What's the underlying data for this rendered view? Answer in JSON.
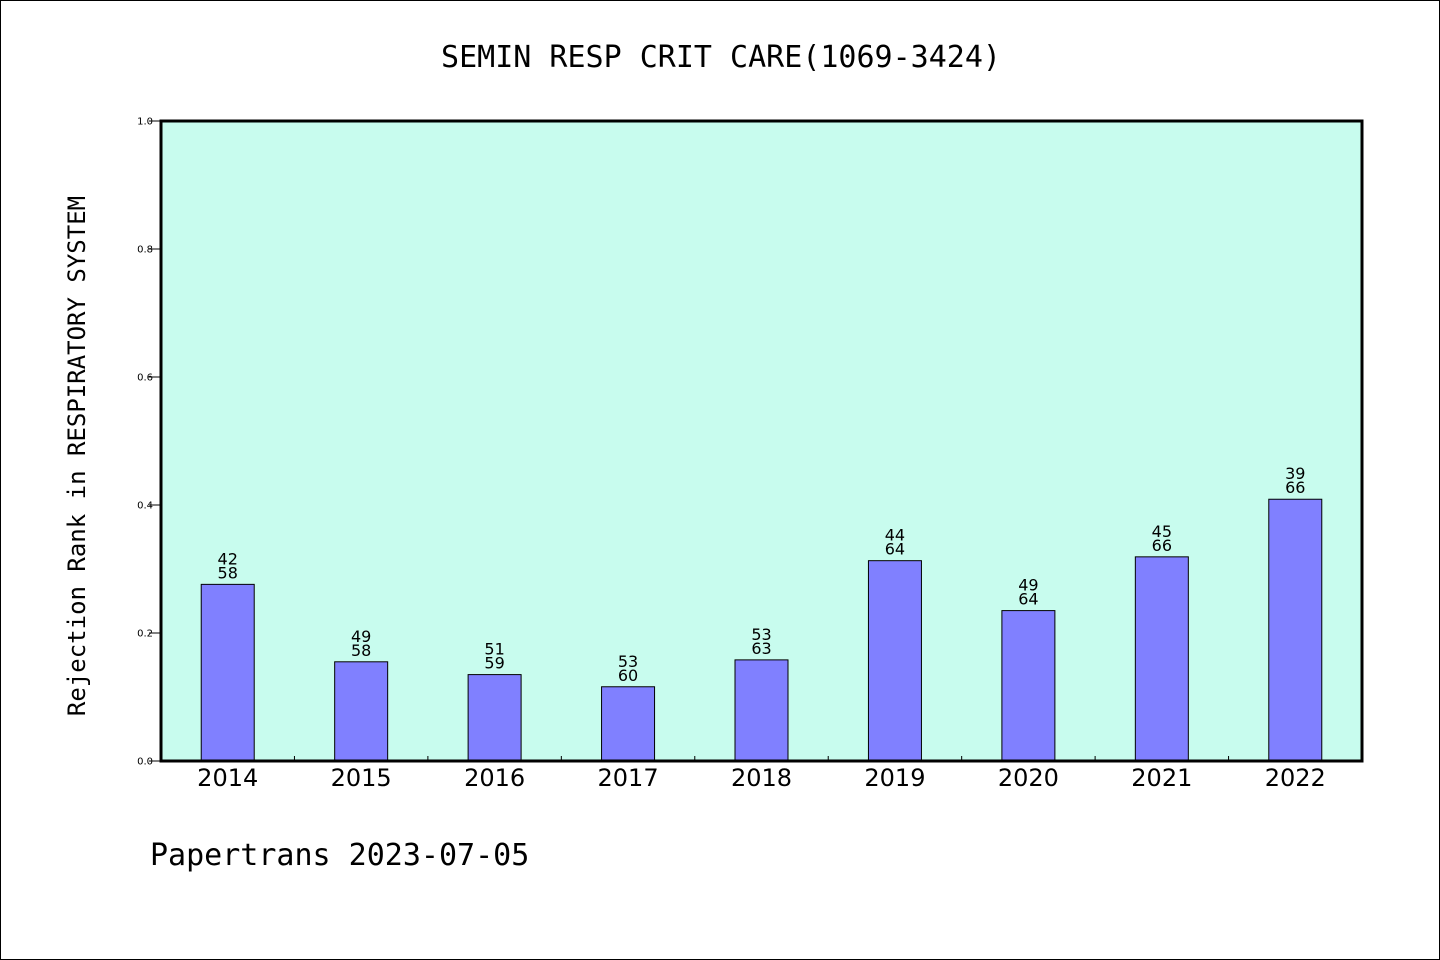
{
  "chart_data": {
    "type": "bar",
    "title": "SEMIN RESP CRIT CARE(1069-3424)",
    "xlabel": "",
    "ylabel": "Rejection Rank in RESPIRATORY SYSTEM",
    "ylim": [
      0,
      1.0
    ],
    "yticks": [
      "0.0",
      "0.2",
      "0.4",
      "0.6",
      "0.8",
      "1.0"
    ],
    "grid": false,
    "categories": [
      "2014",
      "2015",
      "2016",
      "2017",
      "2018",
      "2019",
      "2020",
      "2021",
      "2022"
    ],
    "values": [
      0.276,
      0.155,
      0.135,
      0.116,
      0.158,
      0.313,
      0.235,
      0.319,
      0.409
    ],
    "bar_labels": [
      {
        "top": "42",
        "bottom": "58"
      },
      {
        "top": "49",
        "bottom": "58"
      },
      {
        "top": "51",
        "bottom": "59"
      },
      {
        "top": "53",
        "bottom": "60"
      },
      {
        "top": "53",
        "bottom": "63"
      },
      {
        "top": "44",
        "bottom": "64"
      },
      {
        "top": "49",
        "bottom": "64"
      },
      {
        "top": "45",
        "bottom": "66"
      },
      {
        "top": "39",
        "bottom": "66"
      }
    ],
    "colors": {
      "bar_fill": "#8080ff",
      "bar_stroke": "#000000",
      "plot_background": "#c8fcee",
      "axis": "#000000"
    }
  },
  "footer": "Papertrans 2023-07-05"
}
